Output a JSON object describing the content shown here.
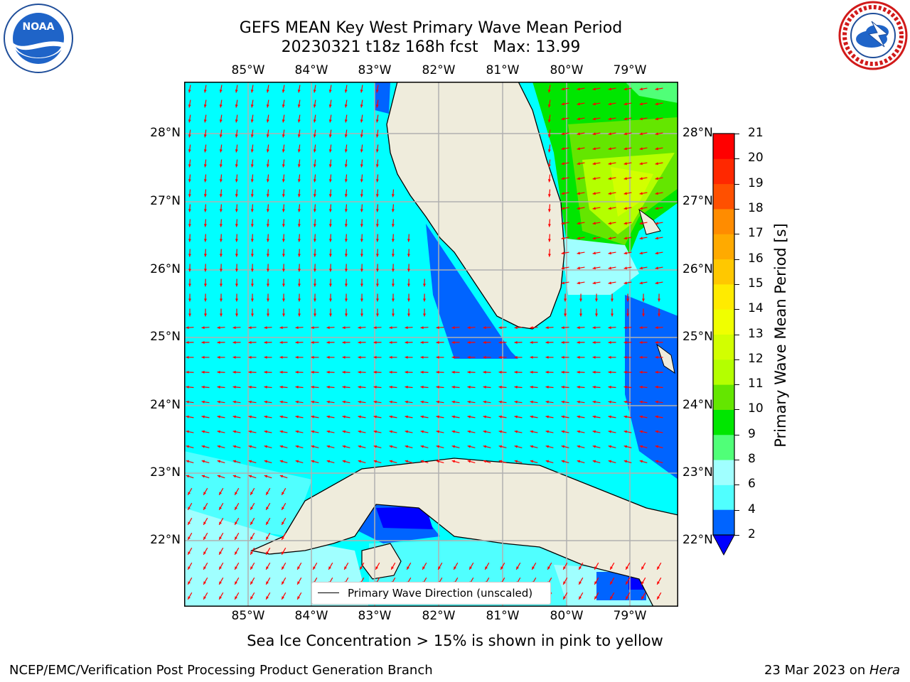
{
  "title": {
    "line1": "GEFS MEAN Key West Primary Wave Mean Period",
    "line2": "20230321 t18z 168h fcst   Max: 13.99"
  },
  "map": {
    "lon_labels": [
      "85°W",
      "84°W",
      "83°W",
      "82°W",
      "81°W",
      "80°W",
      "79°W"
    ],
    "lat_labels": [
      "28°N",
      "27°N",
      "26°N",
      "25°N",
      "24°N",
      "23°N",
      "22°N"
    ],
    "legend_label": "Primary Wave Direction (unscaled)",
    "arrow_color": "#ff0000",
    "land_color": "#efecdc"
  },
  "colorbar": {
    "label": "Primary Wave Mean Period [s]",
    "ticks": [
      "2",
      "4",
      "6",
      "8",
      "9",
      "10",
      "11",
      "12",
      "13",
      "14",
      "15",
      "16",
      "17",
      "18",
      "19",
      "20",
      "21"
    ],
    "colors": [
      "#0064ff",
      "#00e6ff",
      "#50ffff",
      "#a0ffff",
      "#50ff78",
      "#00e600",
      "#64e600",
      "#b4ff00",
      "#d2ff00",
      "#f0ff00",
      "#ffeb00",
      "#ffc800",
      "#ffaa00",
      "#ff8c00",
      "#ff5000",
      "#ff2800",
      "#ff0000"
    ],
    "under_color": "#0000ff"
  },
  "caption": "Sea Ice Concentration > 15% is shown in pink to yellow",
  "footer": {
    "left": "NCEP/EMC/Verification Post Processing Product Generation Branch",
    "right_prefix": "23 Mar 2023 on ",
    "right_machine": "Hera"
  },
  "logos": {
    "left": "NOAA",
    "right_ring": "NATIONAL WEATHER SERVICE"
  }
}
